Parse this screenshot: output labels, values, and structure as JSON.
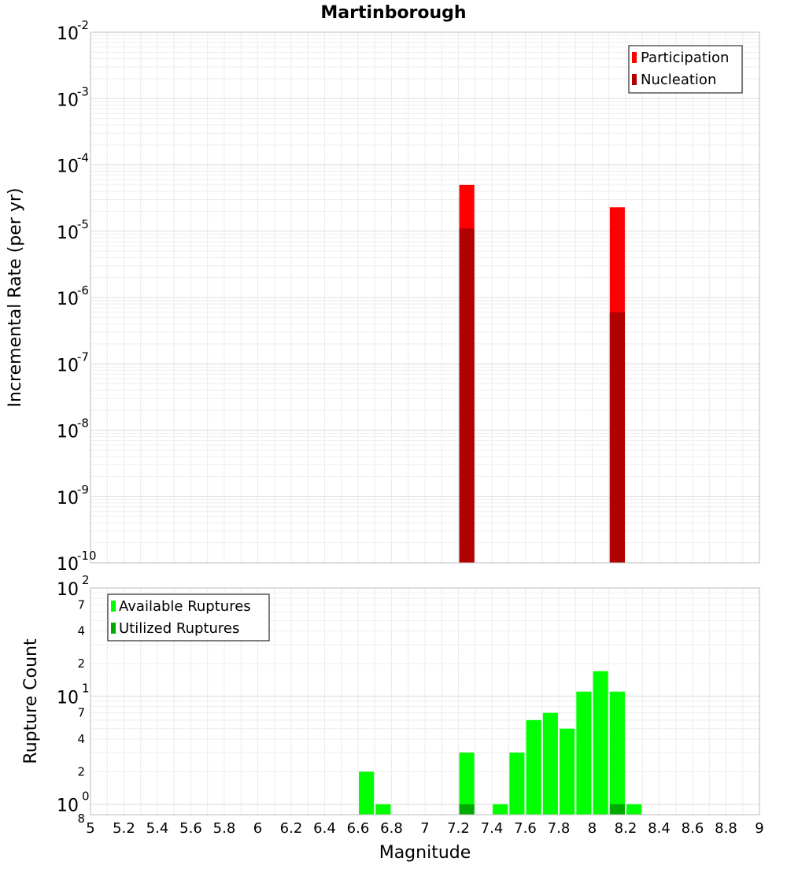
{
  "chart_data": [
    {
      "type": "bar",
      "title": "Martinborough",
      "xlabel": "",
      "ylabel": "Incremental Rate (per yr)",
      "yscale": "log",
      "ylim": [
        1e-10,
        0.01
      ],
      "xlim": [
        5,
        9
      ],
      "grid": true,
      "legend_position": "top-right",
      "y_tick_labels": [
        {
          "base": "10",
          "exp": "-10"
        },
        {
          "base": "10",
          "exp": "-9"
        },
        {
          "base": "10",
          "exp": "-8"
        },
        {
          "base": "10",
          "exp": "-7"
        },
        {
          "base": "10",
          "exp": "-6"
        },
        {
          "base": "10",
          "exp": "-5"
        },
        {
          "base": "10",
          "exp": "-4"
        },
        {
          "base": "10",
          "exp": "-3"
        },
        {
          "base": "10",
          "exp": "-2"
        }
      ],
      "series": [
        {
          "name": "Participation",
          "color": "#ff0000",
          "x": [
            7.25,
            8.15
          ],
          "values": [
            5e-05,
            2.3e-05
          ]
        },
        {
          "name": "Nucleation",
          "color": "#b00000",
          "x": [
            7.25,
            8.15
          ],
          "values": [
            1.1e-05,
            6e-07
          ]
        }
      ]
    },
    {
      "type": "bar",
      "title": "",
      "xlabel": "Magnitude",
      "ylabel": "Rupture Count",
      "yscale": "log",
      "ylim": [
        0.8,
        100
      ],
      "xlim": [
        5,
        9
      ],
      "grid": true,
      "legend_position": "top-left",
      "x_ticks": [
        "5",
        "5.2",
        "5.4",
        "5.6",
        "5.8",
        "6",
        "6.2",
        "6.4",
        "6.6",
        "6.8",
        "7",
        "7.2",
        "7.4",
        "7.6",
        "7.8",
        "8",
        "8.2",
        "8.4",
        "8.6",
        "8.8",
        "9"
      ],
      "y_major_labels": [
        {
          "base": "10",
          "exp": "0"
        },
        {
          "base": "10",
          "exp": "1"
        },
        {
          "base": "10",
          "exp": "2"
        }
      ],
      "y_minor_labels": [
        "8",
        "2",
        "4",
        "7",
        "2",
        "4",
        "7"
      ],
      "series": [
        {
          "name": "Available Ruptures",
          "color": "#00ff00",
          "x": [
            6.65,
            6.75,
            7.25,
            7.45,
            7.55,
            7.65,
            7.75,
            7.85,
            7.95,
            8.05,
            8.15,
            8.25
          ],
          "values": [
            2,
            1,
            3,
            1,
            3,
            6,
            7,
            5,
            11,
            17,
            11,
            1
          ]
        },
        {
          "name": "Utilized Ruptures",
          "color": "#00aa00",
          "x": [
            7.25,
            8.15
          ],
          "values": [
            1,
            1
          ]
        }
      ]
    }
  ]
}
